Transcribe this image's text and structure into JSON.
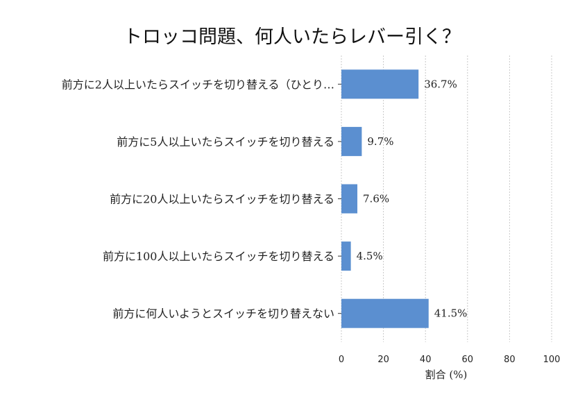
{
  "chart_data": {
    "type": "bar",
    "orientation": "horizontal",
    "title": "トロッコ問題、何人いたらレバー引く？",
    "xlabel": "割合 (%)",
    "ylabel": "",
    "xlim": [
      0,
      100
    ],
    "xticks": [
      "0",
      "20",
      "40",
      "60",
      "80",
      "100"
    ],
    "grid": true,
    "color": "#5b8fd0",
    "categories": [
      "前方に2人以上いたらスイッチを切り替える（ひとり…",
      "前方に5人以上いたらスイッチを切り替える",
      "前方に20人以上いたらスイッチを切り替える",
      "前方に100人以上いたらスイッチを切り替える",
      "前方に何人いようとスイッチを切り替えない"
    ],
    "values": [
      36.7,
      9.7,
      7.6,
      4.5,
      41.5
    ],
    "value_labels": [
      "36.7%",
      "9.7%",
      "7.6%",
      "4.5%",
      "41.5%"
    ]
  }
}
